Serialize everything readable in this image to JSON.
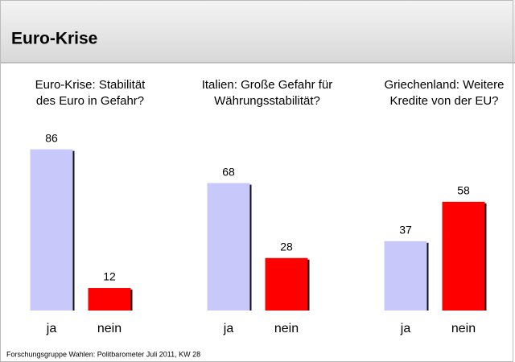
{
  "title": "Euro-Krise",
  "source": "Forschungsgruppe Wahlen: Politbarometer Juli 2011, KW 28",
  "chart_data": [
    {
      "type": "bar",
      "title": [
        "Euro-Krise: Stabilität",
        "des Euro in Gefahr?"
      ],
      "categories": [
        "ja",
        "nein"
      ],
      "values": [
        86,
        12
      ],
      "colors": [
        "#c8c8fa",
        "#ff0000"
      ]
    },
    {
      "type": "bar",
      "title": [
        "Italien: Große Gefahr für",
        "Währungsstabilität?"
      ],
      "categories": [
        "ja",
        "nein"
      ],
      "values": [
        68,
        28
      ],
      "colors": [
        "#c8c8fa",
        "#ff0000"
      ]
    },
    {
      "type": "bar",
      "title": [
        "Griechenland: Weitere",
        "Kredite von der EU?"
      ],
      "categories": [
        "ja",
        "nein"
      ],
      "values": [
        37,
        58
      ],
      "colors": [
        "#c8c8fa",
        "#ff0000"
      ]
    }
  ]
}
